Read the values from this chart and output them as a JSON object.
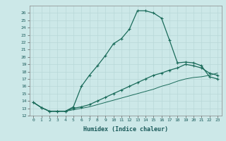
{
  "xlabel": "Humidex (Indice chaleur)",
  "bg_color": "#cce8e8",
  "line_color": "#1a6b5a",
  "xlim": [
    -0.5,
    23.5
  ],
  "ylim": [
    12,
    27
  ],
  "xticks": [
    0,
    1,
    2,
    3,
    4,
    5,
    6,
    7,
    8,
    9,
    10,
    11,
    12,
    13,
    14,
    15,
    16,
    17,
    18,
    19,
    20,
    21,
    22,
    23
  ],
  "yticks": [
    12,
    13,
    14,
    15,
    16,
    17,
    18,
    19,
    20,
    21,
    22,
    23,
    24,
    25,
    26
  ],
  "curve1_x": [
    0,
    1,
    2,
    3,
    4,
    5,
    6,
    7,
    8,
    9,
    10,
    11,
    12,
    13,
    14,
    15,
    16,
    17,
    18,
    19,
    20,
    21,
    22,
    23
  ],
  "curve1_y": [
    13.8,
    13.1,
    12.6,
    12.6,
    12.6,
    13.2,
    16.0,
    17.5,
    18.8,
    20.2,
    21.8,
    22.5,
    23.8,
    26.3,
    26.3,
    26.0,
    25.3,
    22.3,
    19.2,
    19.3,
    19.2,
    18.8,
    17.3,
    17.0
  ],
  "curve2_x": [
    0,
    1,
    2,
    3,
    4,
    5,
    6,
    7,
    8,
    9,
    10,
    11,
    12,
    13,
    14,
    15,
    16,
    17,
    18,
    19,
    20,
    21,
    22,
    23
  ],
  "curve2_y": [
    13.8,
    13.1,
    12.6,
    12.6,
    12.6,
    13.0,
    13.2,
    13.5,
    14.0,
    14.5,
    15.0,
    15.5,
    16.0,
    16.5,
    17.0,
    17.5,
    17.8,
    18.2,
    18.5,
    19.0,
    18.8,
    18.5,
    17.8,
    17.5
  ],
  "curve3_x": [
    0,
    1,
    2,
    3,
    4,
    5,
    6,
    7,
    8,
    9,
    10,
    11,
    12,
    13,
    14,
    15,
    16,
    17,
    18,
    19,
    20,
    21,
    22,
    23
  ],
  "curve3_y": [
    13.8,
    13.1,
    12.6,
    12.6,
    12.6,
    12.8,
    13.0,
    13.2,
    13.5,
    13.8,
    14.1,
    14.4,
    14.7,
    15.0,
    15.3,
    15.6,
    16.0,
    16.3,
    16.7,
    17.0,
    17.2,
    17.3,
    17.5,
    17.8
  ]
}
